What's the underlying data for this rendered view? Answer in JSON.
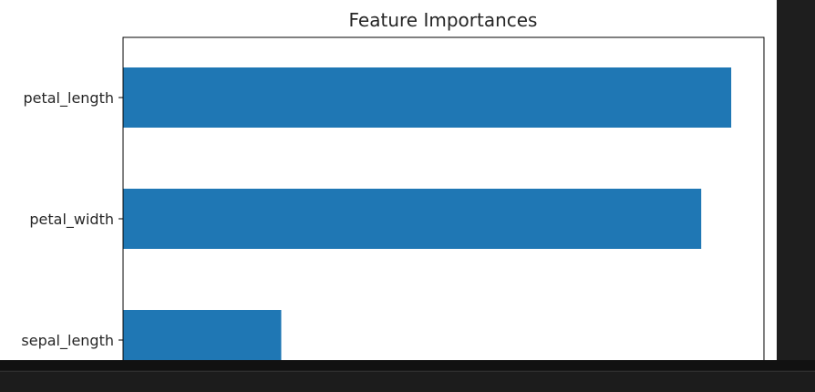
{
  "chart_data": {
    "type": "bar",
    "orientation": "horizontal",
    "title": "Feature Importances",
    "xlabel": "",
    "ylabel": "",
    "categories": [
      "petal_length",
      "petal_width",
      "sepal_length"
    ],
    "values": [
      0.446,
      0.424,
      0.116
    ],
    "xlim": [
      0,
      0.47
    ],
    "grid": false,
    "bar_color": "#1f77b4"
  },
  "colors": {
    "figure_background": "#ffffff",
    "editor_background": "#1e1e1e",
    "panel_background": "#1c1c1c",
    "text": "#262626"
  }
}
